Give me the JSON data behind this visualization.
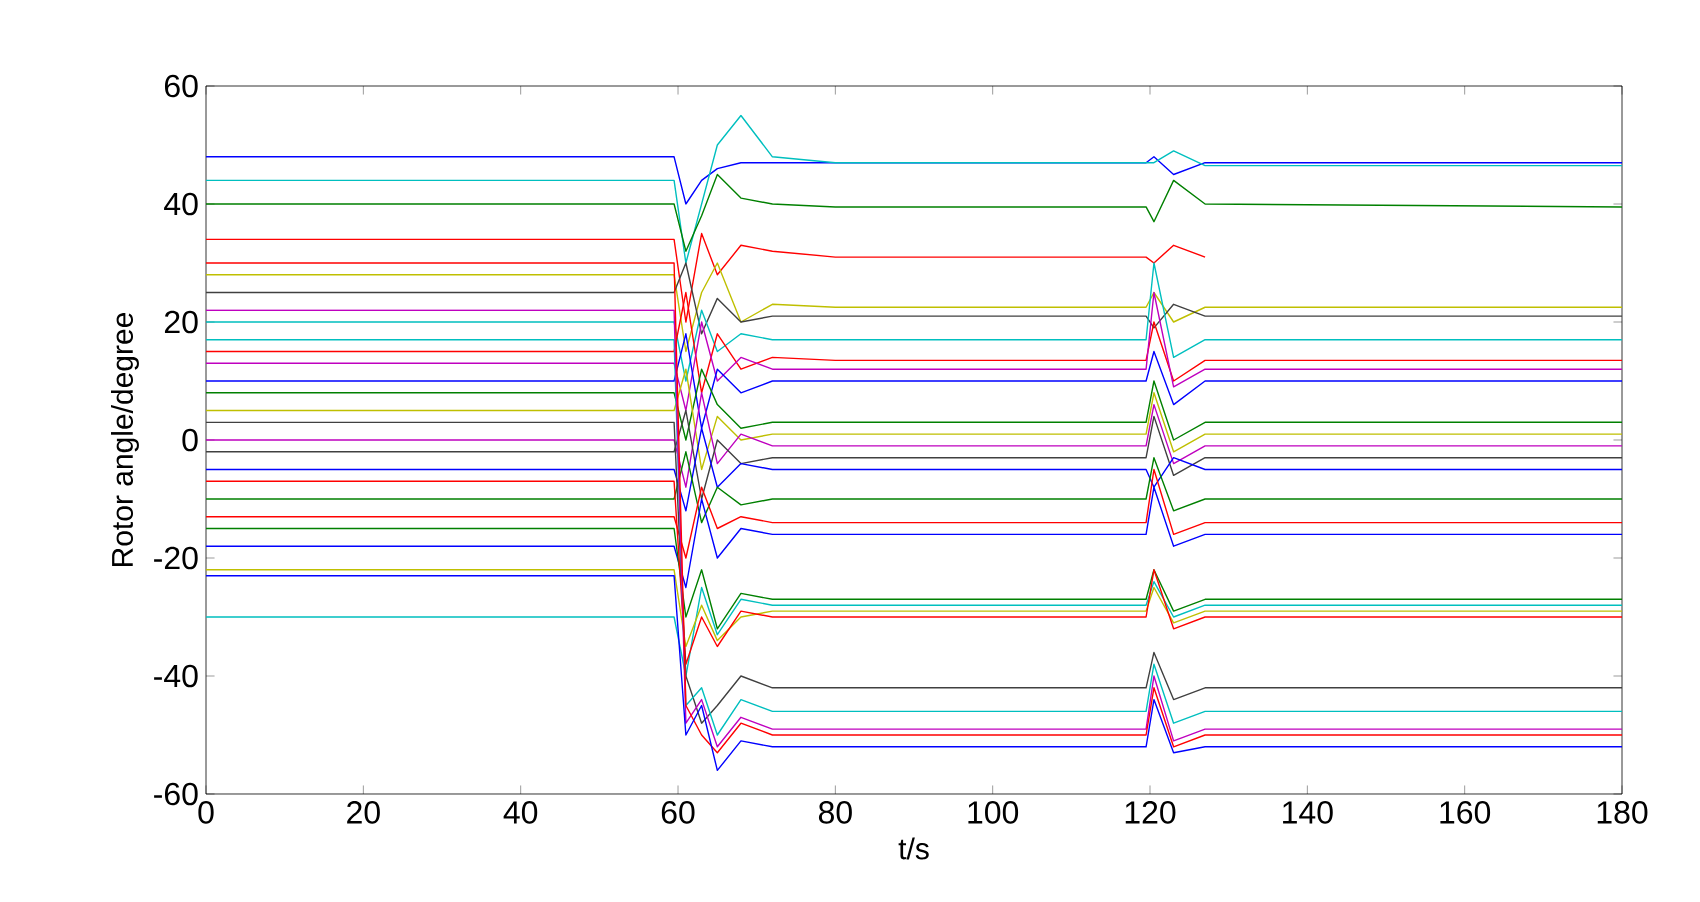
{
  "chart_data": {
    "type": "line",
    "xlabel": "t/s",
    "ylabel": "Rotor angle/degree",
    "xlim": [
      0,
      180
    ],
    "ylim": [
      -60,
      60
    ],
    "xticks": [
      0,
      20,
      40,
      60,
      80,
      100,
      120,
      140,
      160,
      180
    ],
    "yticks": [
      -60,
      -40,
      -20,
      0,
      20,
      40,
      60
    ],
    "marker": "none",
    "line_style": "solid",
    "x": [
      0,
      59.5,
      61,
      63,
      65,
      68,
      72,
      80,
      119.5,
      120.5,
      123,
      127,
      180
    ],
    "series": [
      {
        "color": "#0000ff",
        "values": [
          48,
          48,
          40,
          44,
          46,
          47,
          47,
          47,
          47,
          48,
          45,
          47,
          47
        ]
      },
      {
        "color": "#00bfbf",
        "values": [
          44,
          44,
          30,
          40,
          50,
          55,
          48,
          47,
          47,
          47,
          49,
          46.5,
          46.5
        ]
      },
      {
        "color": "#008000",
        "values": [
          40,
          40,
          32,
          38,
          45,
          41,
          40,
          39.5,
          39.5,
          37,
          44,
          40,
          39.5
        ]
      },
      {
        "color": "#ff0000",
        "values": [
          34,
          34,
          20,
          35,
          28,
          33,
          32,
          31,
          31,
          30,
          33,
          31,
          null
        ]
      },
      {
        "color": "#bfbf00",
        "values": [
          28,
          28,
          15,
          25,
          30,
          20,
          23,
          22.5,
          22.5,
          25,
          20,
          22.5,
          22.5
        ]
      },
      {
        "color": "#404040",
        "values": [
          25,
          25,
          30,
          18,
          24,
          20,
          21,
          21,
          21,
          19,
          23,
          21,
          21
        ]
      },
      {
        "color": "#00bfbf",
        "values": [
          20,
          20,
          10,
          22,
          15,
          18,
          17,
          17,
          17,
          30,
          14,
          17,
          17
        ]
      },
      {
        "color": "#ff0000",
        "values": [
          15,
          15,
          25,
          8,
          18,
          12,
          14,
          13.5,
          13.5,
          20,
          10,
          13.5,
          13.5
        ]
      },
      {
        "color": "#bf00bf",
        "values": [
          13,
          13,
          5,
          20,
          10,
          14,
          12,
          12,
          12,
          25,
          9,
          12,
          12
        ]
      },
      {
        "color": "#0000ff",
        "values": [
          10,
          10,
          18,
          2,
          12,
          8,
          10,
          10,
          10,
          15,
          6,
          10,
          10
        ]
      },
      {
        "color": "#008000",
        "values": [
          8,
          8,
          0,
          12,
          6,
          2,
          3,
          3,
          3,
          10,
          0,
          3,
          3
        ]
      },
      {
        "color": "#bfbf00",
        "values": [
          5,
          5,
          12,
          -5,
          4,
          0,
          1,
          1,
          1,
          8,
          -2,
          1,
          1
        ]
      },
      {
        "color": "#bf00bf",
        "values": [
          0,
          0,
          -8,
          8,
          -4,
          1,
          -1,
          -1,
          -1,
          6,
          -4,
          -1,
          -1
        ]
      },
      {
        "color": "#404040",
        "values": [
          -2,
          -2,
          5,
          -10,
          0,
          -4,
          -3,
          -3,
          -3,
          4,
          -6,
          -3,
          -3
        ]
      },
      {
        "color": "#0000ff",
        "values": [
          -5,
          -5,
          -12,
          2,
          -8,
          -4,
          -5,
          -5,
          -5,
          -8,
          -3,
          -5,
          -5
        ]
      },
      {
        "color": "#008000",
        "values": [
          -10,
          -10,
          -2,
          -14,
          -8,
          -11,
          -10,
          -10,
          -10,
          -3,
          -12,
          -10,
          -10
        ]
      },
      {
        "color": "#ff0000",
        "values": [
          -13,
          -13,
          -20,
          -8,
          -15,
          -13,
          -14,
          -14,
          -14,
          -5,
          -16,
          -14,
          -14
        ]
      },
      {
        "color": "#0000ff",
        "values": [
          -18,
          -18,
          -25,
          -10,
          -20,
          -15,
          -16,
          -16,
          -16,
          -8,
          -18,
          -16,
          -16
        ]
      },
      {
        "color": "#008000",
        "values": [
          -15,
          -15,
          -30,
          -22,
          -32,
          -26,
          -27,
          -27,
          -27,
          -22,
          -29,
          -27,
          -27
        ]
      },
      {
        "color": "#00bfbf",
        "values": [
          -30,
          -30,
          -40,
          -25,
          -33,
          -27,
          -28,
          -28,
          -28,
          -24,
          -30,
          -28,
          -28
        ]
      },
      {
        "color": "#bfbf00",
        "values": [
          -22,
          -22,
          -35,
          -28,
          -34,
          -30,
          -29,
          -29,
          -29,
          -25,
          -31,
          -29,
          -29
        ]
      },
      {
        "color": "#ff0000",
        "values": [
          -7,
          -7,
          -38,
          -30,
          -35,
          -29,
          -30,
          -30,
          -30,
          -22,
          -32,
          -30,
          -30
        ]
      },
      {
        "color": "#404040",
        "values": [
          3,
          3,
          -40,
          -48,
          -45,
          -40,
          -42,
          -42,
          -42,
          -36,
          -44,
          -42,
          -42
        ]
      },
      {
        "color": "#00bfbf",
        "values": [
          17,
          17,
          -45,
          -42,
          -50,
          -44,
          -46,
          -46,
          -46,
          -38,
          -48,
          -46,
          -46
        ]
      },
      {
        "color": "#bf00bf",
        "values": [
          22,
          22,
          -48,
          -44,
          -52,
          -47,
          -49,
          -49,
          -49,
          -40,
          -51,
          -49,
          -49
        ]
      },
      {
        "color": "#ff0000",
        "values": [
          30,
          30,
          -45,
          -50,
          -53,
          -48,
          -50,
          -50,
          -50,
          -42,
          -52,
          -50,
          -50
        ]
      },
      {
        "color": "#0000ff",
        "values": [
          -23,
          -23,
          -50,
          -45,
          -56,
          -51,
          -52,
          -52,
          -52,
          -44,
          -53,
          -52,
          -52
        ]
      }
    ]
  }
}
